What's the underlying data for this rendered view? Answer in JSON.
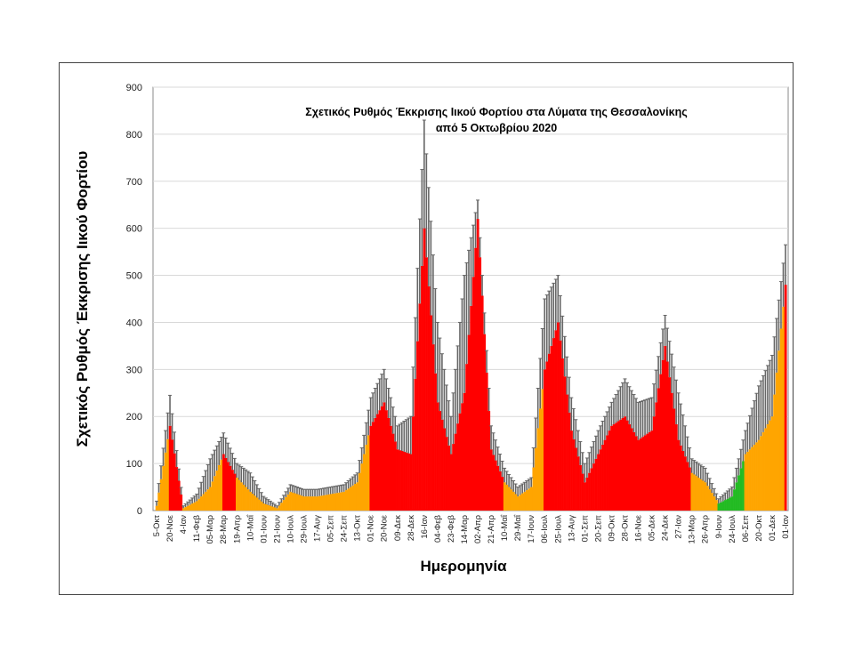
{
  "chart_data": {
    "type": "bar",
    "title": "Σχετικός Ρυθμός Έκκρισης Ιικού Φορτίου στα Λύματα της Θεσσαλονίκης",
    "subtitle": "από 5 Οκτωβρίου 2020",
    "xlabel": "Ημερομηνία",
    "ylabel": "Σχετικός Ρυθμός Έκκρισης Ιικού Φορτίου",
    "ylim": [
      0,
      900
    ],
    "yticks": [
      0,
      100,
      200,
      300,
      400,
      500,
      600,
      700,
      800,
      900
    ],
    "grid": true,
    "categories": [
      "5-Οκτ",
      "20-Νοε",
      "4-Ιαν",
      "11-Φεβ",
      "05-Μαρ",
      "28-Μαρ",
      "19-Απρ",
      "10-Μαΐ",
      "01-Ιουν",
      "21-Ιουν",
      "10-Ιουλ",
      "29-Ιουλ",
      "17-Αυγ",
      "05-Σεπ",
      "24-Σεπ",
      "13-Οκτ",
      "01-Νοε",
      "20-Νοε",
      "09-Δεκ",
      "28-Δεκ",
      "16-Ιαν",
      "04-Φεβ",
      "23-Φεβ",
      "14-Μαρ",
      "02-Απρ",
      "21-Απρ",
      "10-Μαΐ",
      "29-Μαΐ",
      "17-Ιουν",
      "06-Ιουλ",
      "25-Ιουλ",
      "13-Αυγ",
      "01-Σεπ",
      "20-Σεπ",
      "09-Οκτ",
      "28-Οκτ",
      "16-Νοε",
      "05-Δεκ",
      "24-Δεκ",
      "27-Ιαν",
      "13-Μαρ",
      "26-Απρ",
      "9-Ιουν",
      "24-Ιουλ",
      "06-Σεπ",
      "20-Οκτ",
      "01-Δεκ",
      "01-Ιαν"
    ],
    "values": [
      10,
      180,
      5,
      20,
      50,
      120,
      70,
      40,
      15,
      5,
      40,
      30,
      30,
      35,
      40,
      60,
      180,
      230,
      130,
      120,
      600,
      230,
      120,
      250,
      620,
      130,
      60,
      30,
      50,
      300,
      400,
      170,
      60,
      120,
      180,
      200,
      150,
      170,
      350,
      150,
      80,
      60,
      15,
      30,
      120,
      150,
      200,
      480
    ],
    "error_upper": [
      20,
      245,
      10,
      35,
      110,
      165,
      100,
      80,
      30,
      10,
      55,
      45,
      45,
      50,
      55,
      80,
      240,
      300,
      180,
      200,
      830,
      400,
      200,
      500,
      660,
      180,
      90,
      50,
      70,
      450,
      500,
      240,
      100,
      170,
      230,
      280,
      230,
      240,
      415,
      250,
      110,
      90,
      25,
      50,
      170,
      265,
      330,
      565
    ],
    "colors": [
      "#FFA500",
      "#FF0000",
      "#FFA500",
      "#FFA500",
      "#FFA500",
      "#FF0000",
      "#FFA500",
      "#FFA500",
      "#FFA500",
      "#FFA500",
      "#FFA500",
      "#FFA500",
      "#FFA500",
      "#FFA500",
      "#FFA500",
      "#FFA500",
      "#FF0000",
      "#FF0000",
      "#FF0000",
      "#FF0000",
      "#FF0000",
      "#FF0000",
      "#FF0000",
      "#FF0000",
      "#FF0000",
      "#FF0000",
      "#FFA500",
      "#FFA500",
      "#FFA500",
      "#FF0000",
      "#FF0000",
      "#FF0000",
      "#FF0000",
      "#FF0000",
      "#FF0000",
      "#FF0000",
      "#FF0000",
      "#FF0000",
      "#FF0000",
      "#FF0000",
      "#FFA500",
      "#FFA500",
      "#22BB22",
      "#22BB22",
      "#FFA500",
      "#FFA500",
      "#FFA500",
      "#FF0000"
    ],
    "error_bar_color": "#666666"
  }
}
